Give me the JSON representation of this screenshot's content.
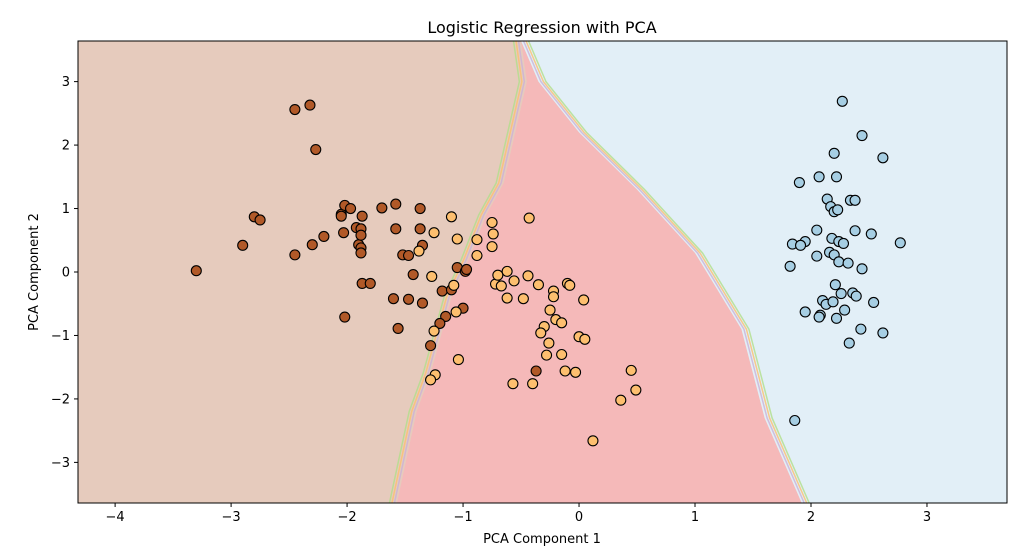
{
  "chart_data": {
    "type": "scatter",
    "title": "Logistic Regression with PCA",
    "xlabel": "PCA Component 1",
    "ylabel": "PCA Component 2",
    "xlim": [
      -4.32,
      3.69
    ],
    "ylim": [
      -3.64,
      3.64
    ],
    "xticks": [
      -4,
      -3,
      -2,
      -1,
      0,
      1,
      2,
      3
    ],
    "yticks": [
      -3,
      -2,
      -1,
      0,
      1,
      2,
      3
    ],
    "xtick_labels": [
      "−4",
      "−3",
      "−2",
      "−1",
      "0",
      "1",
      "2",
      "3"
    ],
    "ytick_labels": [
      "−3",
      "−2",
      "−1",
      "0",
      "1",
      "2",
      "3"
    ],
    "grid": false,
    "regions": [
      {
        "class": 0,
        "color": "#e6cbbd",
        "boundary": [
          [
            -1.57,
            -3.64
          ],
          [
            -1.4,
            -2.2
          ],
          [
            -1.28,
            -1.6
          ],
          [
            -1.1,
            -0.4
          ],
          [
            -0.95,
            0.2
          ],
          [
            -0.8,
            0.9
          ],
          [
            -0.65,
            1.4
          ],
          [
            -0.55,
            2.2
          ],
          [
            -0.45,
            3.0
          ],
          [
            -0.5,
            3.64
          ]
        ]
      },
      {
        "class": 1,
        "color": "#f5b9b9"
      },
      {
        "class": 2,
        "color": "#e2eff7",
        "boundary": [
          [
            -0.5,
            3.64
          ],
          [
            -0.35,
            3.0
          ],
          [
            0.0,
            2.2
          ],
          [
            0.5,
            1.3
          ],
          [
            1.0,
            0.3
          ],
          [
            1.4,
            -0.9
          ],
          [
            1.6,
            -2.3
          ],
          [
            1.92,
            -3.64
          ]
        ]
      }
    ],
    "series": [
      {
        "class": 0,
        "color": "#b15928",
        "points": [
          [
            -3.3,
            0.02
          ],
          [
            -2.9,
            0.42
          ],
          [
            -2.8,
            0.87
          ],
          [
            -2.75,
            0.82
          ],
          [
            -2.45,
            2.56
          ],
          [
            -2.32,
            2.63
          ],
          [
            -2.27,
            1.93
          ],
          [
            -2.45,
            0.27
          ],
          [
            -2.3,
            0.43
          ],
          [
            -2.2,
            0.56
          ],
          [
            -2.05,
            0.91
          ],
          [
            -2.05,
            0.88
          ],
          [
            -2.02,
            1.05
          ],
          [
            -1.97,
            1.0
          ],
          [
            -2.03,
            0.62
          ],
          [
            -1.92,
            0.7
          ],
          [
            -1.88,
            0.68
          ],
          [
            -1.87,
            0.88
          ],
          [
            -1.9,
            0.43
          ],
          [
            -1.88,
            0.38
          ],
          [
            -1.88,
            0.3
          ],
          [
            -1.88,
            0.58
          ],
          [
            -1.87,
            -0.18
          ],
          [
            -1.8,
            -0.18
          ],
          [
            -2.02,
            -0.71
          ],
          [
            -1.7,
            1.01
          ],
          [
            -1.58,
            1.07
          ],
          [
            -1.58,
            0.68
          ],
          [
            -1.52,
            0.27
          ],
          [
            -1.47,
            0.26
          ],
          [
            -1.37,
            1.0
          ],
          [
            -1.37,
            0.68
          ],
          [
            -1.35,
            0.42
          ],
          [
            -1.6,
            -0.42
          ],
          [
            -1.47,
            -0.43
          ],
          [
            -1.35,
            -0.49
          ],
          [
            -1.56,
            -0.89
          ],
          [
            -1.43,
            -0.04
          ],
          [
            -1.28,
            -1.16
          ],
          [
            -1.15,
            -0.7
          ],
          [
            -1.2,
            -0.81
          ],
          [
            -1.18,
            -0.3
          ],
          [
            -1.1,
            -0.28
          ],
          [
            -1.05,
            0.07
          ],
          [
            -0.98,
            0.01
          ],
          [
            -0.97,
            0.04
          ],
          [
            -1.0,
            -0.57
          ],
          [
            -0.37,
            -1.56
          ]
        ]
      },
      {
        "class": 1,
        "color": "#fdbf6f",
        "points": [
          [
            -1.1,
            0.87
          ],
          [
            -1.25,
            0.62
          ],
          [
            -1.05,
            0.52
          ],
          [
            -0.88,
            0.51
          ],
          [
            -0.75,
            0.78
          ],
          [
            -0.74,
            0.6
          ],
          [
            -0.75,
            0.4
          ],
          [
            -0.88,
            0.26
          ],
          [
            -1.38,
            0.33
          ],
          [
            -1.27,
            -0.07
          ],
          [
            -1.08,
            -0.21
          ],
          [
            -1.06,
            -0.63
          ],
          [
            -1.25,
            -0.93
          ],
          [
            -1.24,
            -1.62
          ],
          [
            -1.28,
            -1.7
          ],
          [
            -1.04,
            -1.38
          ],
          [
            -0.72,
            -0.19
          ],
          [
            -0.7,
            -0.05
          ],
          [
            -0.67,
            -0.22
          ],
          [
            -0.62,
            0.01
          ],
          [
            -0.56,
            -0.14
          ],
          [
            -0.62,
            -0.41
          ],
          [
            -0.48,
            -0.42
          ],
          [
            -0.44,
            -0.06
          ],
          [
            -0.43,
            0.85
          ],
          [
            -0.35,
            -0.2
          ],
          [
            -0.22,
            -0.3
          ],
          [
            -0.22,
            -0.39
          ],
          [
            -0.2,
            -0.75
          ],
          [
            -0.25,
            -0.6
          ],
          [
            -0.3,
            -0.86
          ],
          [
            -0.33,
            -0.96
          ],
          [
            -0.26,
            -1.12
          ],
          [
            -0.15,
            -0.8
          ],
          [
            -0.28,
            -1.31
          ],
          [
            -0.15,
            -1.3
          ],
          [
            -0.1,
            -0.18
          ],
          [
            -0.08,
            -0.21
          ],
          [
            0.04,
            -0.44
          ],
          [
            0.0,
            -1.02
          ],
          [
            0.05,
            -1.06
          ],
          [
            -0.57,
            -1.76
          ],
          [
            -0.4,
            -1.76
          ],
          [
            -0.12,
            -1.56
          ],
          [
            -0.03,
            -1.58
          ],
          [
            0.12,
            -2.66
          ],
          [
            0.36,
            -2.02
          ],
          [
            0.45,
            -1.55
          ],
          [
            0.49,
            -1.86
          ]
        ]
      },
      {
        "class": 2,
        "color": "#a6cee3",
        "points": [
          [
            2.27,
            2.69
          ],
          [
            2.44,
            2.15
          ],
          [
            2.2,
            1.87
          ],
          [
            2.62,
            1.8
          ],
          [
            1.9,
            1.41
          ],
          [
            2.07,
            1.5
          ],
          [
            2.22,
            1.5
          ],
          [
            2.34,
            1.13
          ],
          [
            2.38,
            1.13
          ],
          [
            2.14,
            1.15
          ],
          [
            2.17,
            1.03
          ],
          [
            2.2,
            0.95
          ],
          [
            2.23,
            0.98
          ],
          [
            2.38,
            0.65
          ],
          [
            2.52,
            0.6
          ],
          [
            2.05,
            0.66
          ],
          [
            2.18,
            0.53
          ],
          [
            2.24,
            0.48
          ],
          [
            2.28,
            0.45
          ],
          [
            1.95,
            0.48
          ],
          [
            1.84,
            0.44
          ],
          [
            1.91,
            0.42
          ],
          [
            2.05,
            0.25
          ],
          [
            2.16,
            0.31
          ],
          [
            2.2,
            0.27
          ],
          [
            2.24,
            0.16
          ],
          [
            2.32,
            0.14
          ],
          [
            2.44,
            0.05
          ],
          [
            2.77,
            0.46
          ],
          [
            1.82,
            0.09
          ],
          [
            2.21,
            -0.2
          ],
          [
            2.26,
            -0.34
          ],
          [
            2.36,
            -0.33
          ],
          [
            2.39,
            -0.38
          ],
          [
            2.1,
            -0.45
          ],
          [
            2.13,
            -0.51
          ],
          [
            2.19,
            -0.47
          ],
          [
            2.29,
            -0.6
          ],
          [
            2.54,
            -0.48
          ],
          [
            1.95,
            -0.63
          ],
          [
            2.08,
            -0.68
          ],
          [
            2.07,
            -0.71
          ],
          [
            2.22,
            -0.73
          ],
          [
            2.43,
            -0.9
          ],
          [
            2.62,
            -0.96
          ],
          [
            2.33,
            -1.12
          ],
          [
            1.86,
            -2.34
          ]
        ]
      }
    ]
  }
}
